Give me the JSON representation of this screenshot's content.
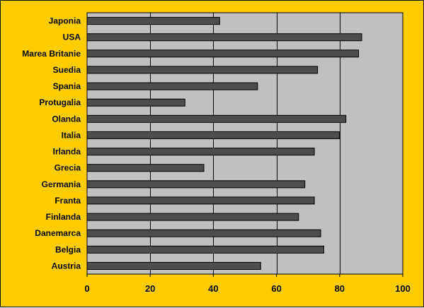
{
  "chart_data": {
    "type": "bar",
    "orientation": "horizontal",
    "categories": [
      "Japonia",
      "USA",
      "Marea Britanie",
      "Suedia",
      "Spania",
      "Protugalia",
      "Olanda",
      "Italia",
      "Irlanda",
      "Grecia",
      "Germania",
      "Franta",
      "Finlanda",
      "Danemarca",
      "Belgia",
      "Austria"
    ],
    "values": [
      42,
      87,
      86,
      73,
      54,
      31,
      82,
      80,
      72,
      37,
      69,
      72,
      67,
      74,
      75,
      55
    ],
    "xlim": [
      0,
      100
    ],
    "xticks": [
      "0",
      "20",
      "40",
      "60",
      "80",
      "100"
    ],
    "grid": "vertical",
    "legend": "none",
    "title": "",
    "xlabel": "",
    "ylabel": ""
  },
  "colors": {
    "background": "#FFCC00",
    "plot_area": "#C0C0C0",
    "bar_fill": "#4D4D4D",
    "bar_border": "#000000",
    "grid": "#000000"
  }
}
